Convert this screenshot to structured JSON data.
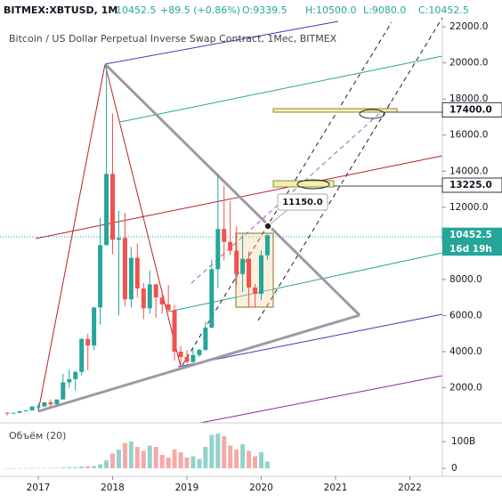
{
  "header": {
    "symbol": "BITMEX:XBTUSD, 1M",
    "last": "10452.5",
    "change": "+89.5 (+0.86%)",
    "open": "O:9339.5",
    "high": "H:10500.0",
    "low": "L:9080.0",
    "close": "C:10452.5"
  },
  "chart_data": {
    "type": "candlestick",
    "subtitle": "Bitcoin / US Dollar Perpetual Inverse Swap Contract, 1Мес, BITMEX",
    "x": [
      2016.583,
      2016.667,
      2016.75,
      2016.833,
      2016.917,
      2017,
      2017.083,
      2017.167,
      2017.25,
      2017.333,
      2017.417,
      2017.5,
      2017.583,
      2017.667,
      2017.75,
      2017.833,
      2017.917,
      2018,
      2018.083,
      2018.167,
      2018.25,
      2018.333,
      2018.417,
      2018.5,
      2018.583,
      2018.667,
      2018.75,
      2018.833,
      2018.917,
      2019,
      2019.083,
      2019.167,
      2019.25,
      2019.333,
      2019.417,
      2019.5,
      2019.583,
      2019.667,
      2019.75,
      2019.833,
      2019.917,
      2020,
      2020.083
    ],
    "open": [
      624,
      573,
      608,
      700,
      742,
      963,
      965,
      1190,
      1080,
      1350,
      2300,
      2480,
      2875,
      4700,
      4340,
      6450,
      9900,
      13850,
      10200,
      10300,
      6900,
      9200,
      7500,
      6400,
      7730,
      7000,
      6620,
      6300,
      4000,
      3700,
      3430,
      3810,
      4100,
      5330,
      8570,
      10800,
      10080,
      9600,
      8300,
      9150,
      7550,
      7200,
      9339.5
    ],
    "high": [
      626,
      610,
      720,
      760,
      980,
      1160,
      1200,
      1350,
      1350,
      2770,
      3000,
      2950,
      4750,
      4990,
      6470,
      11400,
      20000,
      17200,
      11800,
      11700,
      9800,
      10000,
      7800,
      8500,
      7750,
      7400,
      7700,
      6600,
      4300,
      4100,
      4200,
      4150,
      5650,
      9100,
      13880,
      13200,
      12350,
      10950,
      10500,
      9550,
      7750,
      9600,
      10500
    ],
    "low": [
      470,
      570,
      605,
      680,
      740,
      750,
      915,
      890,
      1070,
      1350,
      2000,
      1840,
      2700,
      2980,
      4100,
      5500,
      9900,
      9400,
      6000,
      6500,
      6450,
      7000,
      5800,
      6100,
      5880,
      6100,
      6200,
      3500,
      3100,
      3350,
      3380,
      3700,
      4050,
      5300,
      7500,
      9050,
      9350,
      7700,
      7300,
      6500,
      6430,
      6850,
      9080
    ],
    "close": [
      573,
      608,
      700,
      742,
      963,
      965,
      1190,
      1080,
      1350,
      2300,
      2480,
      2875,
      4700,
      4340,
      6450,
      9900,
      13850,
      10200,
      10300,
      6900,
      9200,
      7500,
      6400,
      7730,
      7000,
      6620,
      6300,
      4000,
      3700,
      3430,
      3810,
      4100,
      5330,
      8570,
      10800,
      10080,
      9600,
      8300,
      9150,
      7550,
      7200,
      9339.5,
      10452.5
    ],
    "up_color": "#26a69a",
    "down_color": "#ef5350",
    "xlim": [
      2016.485,
      2022.437
    ],
    "xticks": [
      2017,
      2018,
      2019,
      2020,
      2021,
      2022
    ],
    "ylim": [
      300,
      22400
    ],
    "yticks": [
      {
        "value": 2000,
        "label": "2000.0"
      },
      {
        "value": 4000,
        "label": "4000.0"
      },
      {
        "value": 6000,
        "label": "6000.0"
      },
      {
        "value": 8000,
        "label": "8000.0"
      },
      {
        "value": 10000,
        "label": "10000.0"
      },
      {
        "value": 12000,
        "label": "12000.0"
      },
      {
        "value": 14000,
        "label": "14000.0"
      },
      {
        "value": 16000,
        "label": "16000.0"
      },
      {
        "value": 18000,
        "label": "18000.0"
      },
      {
        "value": 20000,
        "label": "20000.0"
      },
      {
        "value": 22000,
        "label": "22000.0"
      }
    ],
    "price_labels": [
      {
        "value": 17400,
        "label": "17400.0"
      },
      {
        "value": 13225,
        "label": "13225.0"
      },
      {
        "value": 10452.5,
        "label": "10452.5"
      }
    ],
    "countdown": "16d 19h",
    "annotation": "11150.0",
    "volume": {
      "title": "Объём (20)",
      "ylim": [
        0,
        160000000000.0
      ],
      "yticks": [
        0,
        {
          "value": 100000000000.0,
          "label": "100B"
        }
      ],
      "values": [
        300000000.0,
        300000000.0,
        400000000.0,
        500000000.0,
        800000000.0,
        1000000000.0,
        1000000000.0,
        1500000000.0,
        1500000000.0,
        3000000000.0,
        4000000000.0,
        4000000000.0,
        6000000000.0,
        7000000000.0,
        8000000000.0,
        15000000000.0,
        30000000000.0,
        55000000000.0,
        70000000000.0,
        95000000000.0,
        100000000000.0,
        80000000000.0,
        65000000000.0,
        85000000000.0,
        80000000000.0,
        50000000000.0,
        40000000000.0,
        70000000000.0,
        60000000000.0,
        40000000000.0,
        45000000000.0,
        35000000000.0,
        80000000000.0,
        125000000000.0,
        130000000000.0,
        120000000000.0,
        85000000000.0,
        70000000000.0,
        90000000000.0,
        65000000000.0,
        45000000000.0,
        60000000000.0,
        25000000000.0
      ]
    }
  }
}
